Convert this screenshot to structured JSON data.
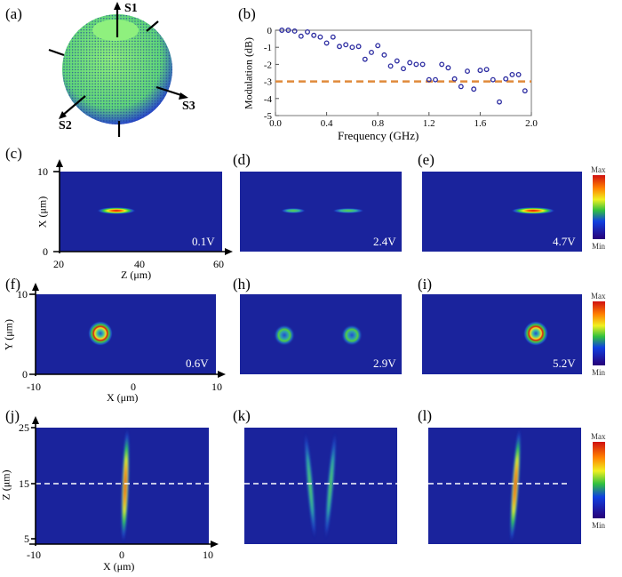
{
  "panels": {
    "a": {
      "label": "(a)",
      "axes": [
        "S1",
        "S2",
        "S3"
      ]
    },
    "b": {
      "label": "(b)"
    },
    "c": {
      "label": "(c)",
      "voltage": "0.1V",
      "ylabel": "X (μm)",
      "xlabel": "Z (μm)",
      "yticks": [
        "10",
        "0"
      ],
      "xticks": [
        "20",
        "40",
        "60"
      ]
    },
    "d": {
      "label": "(d)",
      "voltage": "2.4V"
    },
    "e": {
      "label": "(e)",
      "voltage": "4.7V"
    },
    "f": {
      "label": "(f)",
      "voltage": "0.6V",
      "ylabel": "Y (μm)",
      "xlabel": "X (μm)",
      "yticks": [
        "10",
        "0"
      ],
      "xticks": [
        "-10",
        "0",
        "10"
      ]
    },
    "h": {
      "label": "(h)",
      "voltage": "2.9V"
    },
    "i": {
      "label": "(i)",
      "voltage": "5.2V"
    },
    "j": {
      "label": "(j)",
      "ylabel": "Z (μm)",
      "xlabel": "X (μm)",
      "yticks": [
        "25",
        "15",
        "5"
      ],
      "xticks": [
        "-10",
        "0",
        "10"
      ]
    },
    "k": {
      "label": "(k)"
    },
    "l": {
      "label": "(l)"
    }
  },
  "colorbar": {
    "max": "Max",
    "min": "Min",
    "colormap": "jet"
  },
  "colors": {
    "field_background": "#1a239c",
    "marker": "#2a2aa0",
    "threshold": "#e08a3a"
  },
  "chart_data": {
    "type": "scatter",
    "xlabel": "Frequency (GHz)",
    "ylabel": "Modulation (dB)",
    "xlim": [
      0.0,
      2.0
    ],
    "ylim": [
      -5,
      0
    ],
    "xticks": [
      "0.0",
      "0.4",
      "0.8",
      "1.2",
      "1.6",
      "2.0"
    ],
    "yticks": [
      "0",
      "-1",
      "-2",
      "-3",
      "-4",
      "-5"
    ],
    "x": [
      0.05,
      0.1,
      0.15,
      0.2,
      0.25,
      0.3,
      0.35,
      0.4,
      0.45,
      0.5,
      0.55,
      0.6,
      0.65,
      0.7,
      0.75,
      0.8,
      0.85,
      0.9,
      0.95,
      1.0,
      1.05,
      1.1,
      1.15,
      1.2,
      1.25,
      1.3,
      1.35,
      1.4,
      1.45,
      1.5,
      1.55,
      1.6,
      1.65,
      1.7,
      1.75,
      1.8,
      1.85,
      1.9,
      1.95
    ],
    "y": [
      0,
      0,
      -0.05,
      -0.35,
      -0.1,
      -0.3,
      -0.4,
      -0.75,
      -0.4,
      -0.95,
      -0.85,
      -1.0,
      -0.95,
      -1.7,
      -1.3,
      -0.9,
      -1.45,
      -2.1,
      -1.8,
      -2.25,
      -1.9,
      -2.0,
      -2.0,
      -2.9,
      -2.9,
      -2.0,
      -2.2,
      -2.85,
      -3.3,
      -2.4,
      -3.45,
      -2.35,
      -2.3,
      -2.9,
      -4.2,
      -2.85,
      -2.6,
      -2.6,
      -3.55
    ],
    "reference_line": {
      "y": -3,
      "style": "dashed"
    },
    "grid": false
  }
}
